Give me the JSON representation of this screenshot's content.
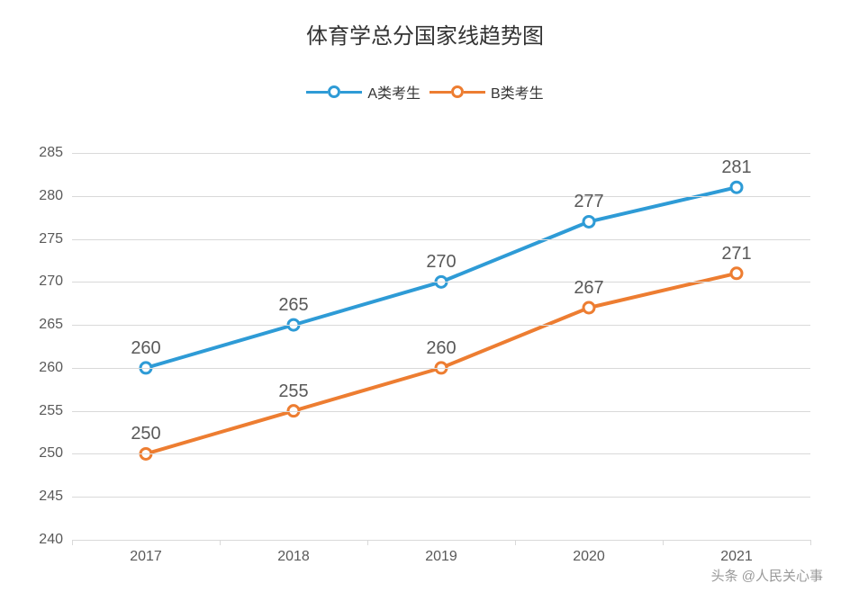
{
  "chart": {
    "type": "line",
    "title": "体育学总分国家线趋势图",
    "title_fontsize": 24,
    "title_color": "#333333",
    "background_color": "#ffffff",
    "categories": [
      "2017",
      "2018",
      "2019",
      "2020",
      "2021"
    ],
    "ylim": [
      240,
      285
    ],
    "ytick_step": 5,
    "yticks": [
      240,
      245,
      250,
      255,
      260,
      265,
      270,
      275,
      280,
      285
    ],
    "grid_color": "#d9d9d9",
    "axis_label_color": "#595959",
    "axis_label_fontsize": 16,
    "data_label_fontsize": 20,
    "data_label_color": "#595959",
    "line_width": 4,
    "marker_size": 6,
    "marker_border_width": 3,
    "legend": {
      "position": "top",
      "fontsize": 16
    },
    "series": [
      {
        "name": "A类考生",
        "color": "#2e9bd6",
        "values": [
          260,
          265,
          270,
          277,
          281
        ]
      },
      {
        "name": "B类考生",
        "color": "#ed7d31",
        "values": [
          250,
          255,
          260,
          267,
          271
        ]
      }
    ]
  },
  "watermark": "头条 @人民关心事"
}
